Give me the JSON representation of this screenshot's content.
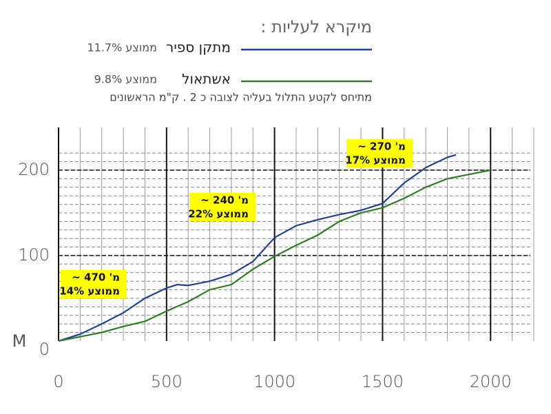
{
  "chart_data": {
    "type": "line",
    "legend_title": "מיקרא לעליות :",
    "note": "מתיחס לקטע התלול בעליה לצובה כ 2 . ק\"מ הראשונים",
    "y_label": "M",
    "xlim": [
      0,
      2200
    ],
    "ylim": [
      0,
      250
    ],
    "xticks": [
      0,
      500,
      1000,
      1500,
      2000
    ],
    "yticks": [
      0,
      100,
      200
    ],
    "grid": true,
    "series": [
      {
        "name": "מתקן ספיר",
        "average": "ממוצע 11.7%",
        "color": "#1f3f9f",
        "x": [
          0,
          100,
          200,
          300,
          400,
          500,
          550,
          600,
          700,
          800,
          900,
          1000,
          1100,
          1200,
          1300,
          1400,
          1500,
          1600,
          1700,
          1800,
          1840
        ],
        "values": [
          0,
          8,
          20,
          33,
          50,
          62,
          66,
          65,
          70,
          78,
          93,
          121,
          135,
          142,
          148,
          153,
          161,
          185,
          203,
          215,
          218
        ]
      },
      {
        "name": "אשתאול",
        "average": "ממוצע 9.8%",
        "color": "#2e7d22",
        "x": [
          0,
          200,
          300,
          400,
          500,
          600,
          700,
          800,
          900,
          1000,
          1100,
          1200,
          1300,
          1400,
          1500,
          1600,
          1700,
          1800,
          1900,
          2000
        ],
        "values": [
          0,
          10,
          17,
          23,
          35,
          46,
          60,
          66,
          84,
          99,
          112,
          124,
          140,
          150,
          156,
          167,
          180,
          190,
          195,
          200
        ]
      }
    ],
    "annotations": [
      {
        "lines": [
          "מ' 470 ~",
          "ממוצע 14%"
        ]
      },
      {
        "lines": [
          "מ' 240 ~",
          "ממוצע 22%"
        ]
      },
      {
        "lines": [
          "מ' 270 ~",
          "ממוצע 17%"
        ]
      }
    ]
  }
}
